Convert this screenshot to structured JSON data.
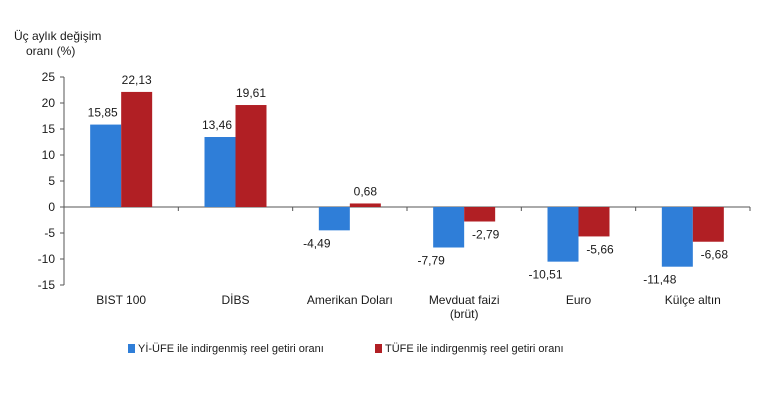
{
  "chart_data": {
    "type": "bar",
    "ylabel": "Üç aylık değişim\noranı (%)",
    "xlabel": "",
    "ylim": [
      -15,
      25
    ],
    "yticks": [
      25,
      20,
      15,
      10,
      5,
      0,
      -5,
      -10,
      -15
    ],
    "categories": [
      "BIST 100",
      "DİBS",
      "Amerikan Doları",
      "Mevduat faizi\n(brüt)",
      "Euro",
      "Külçe altın"
    ],
    "series": [
      {
        "name": "Yİ-ÜFE ile indirgenmiş reel getiri oranı",
        "color": "#2f7ed8",
        "values": [
          15.85,
          13.46,
          -4.49,
          -7.79,
          -10.51,
          -11.48
        ],
        "labels": [
          "15,85",
          "13,46",
          "-4,49",
          "-7,79",
          "-10,51",
          "-11,48"
        ]
      },
      {
        "name": "TÜFE ile indirgenmiş reel getiri oranı",
        "color": "#b11f24",
        "values": [
          22.13,
          19.61,
          0.68,
          -2.79,
          -5.66,
          -6.68
        ],
        "labels": [
          "22,13",
          "19,61",
          "0,68",
          "-2,79",
          "-5,66",
          "-6,68"
        ]
      }
    ],
    "grid": false,
    "legend": "bottom"
  }
}
